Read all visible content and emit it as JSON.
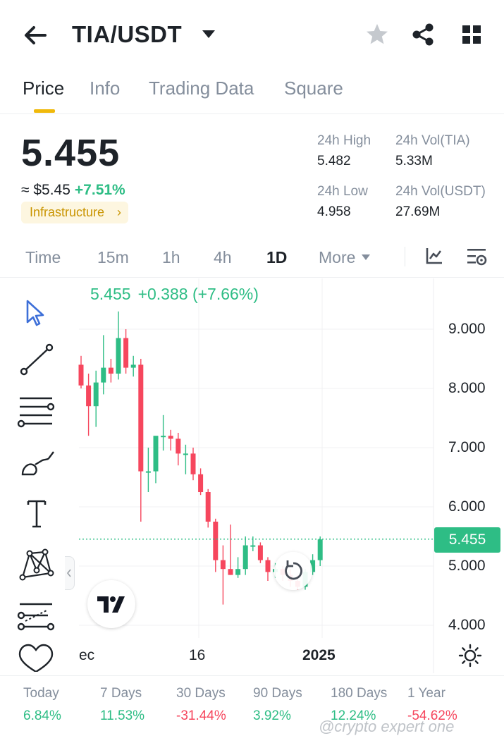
{
  "header": {
    "pair": "TIA/USDT",
    "icons": [
      "back-arrow-icon",
      "caret-down-icon",
      "star-icon",
      "share-icon",
      "grid-icon"
    ]
  },
  "tabs": [
    {
      "label": "Price",
      "active": true
    },
    {
      "label": "Info"
    },
    {
      "label": "Trading Data"
    },
    {
      "label": "Square"
    }
  ],
  "ticker": {
    "last_price": "5.455",
    "usd_value": "≈ $5.45",
    "change_pct": "+7.51%",
    "category_tag": "Infrastructure",
    "category_arrow": "›",
    "high_label": "24h High",
    "high_value": "5.482",
    "low_label": "24h Low",
    "low_value": "4.958",
    "vol_base_label": "24h Vol(TIA)",
    "vol_base_value": "5.33M",
    "vol_quote_label": "24h Vol(USDT)",
    "vol_quote_value": "27.69M"
  },
  "intervals": {
    "items": [
      "Time",
      "15m",
      "1h",
      "4h",
      "1D",
      "More"
    ],
    "active": "1D"
  },
  "chart": {
    "legend_price": "5.455",
    "legend_change": "+0.388 (+7.66%)",
    "y_ticks": [
      "9.000",
      "8.000",
      "7.000",
      "6.000",
      "5.000",
      "4.000"
    ],
    "last_price_tag": "5.455",
    "x_ticks": [
      "ec",
      "16",
      "2025"
    ],
    "up_color": "#2ebd85",
    "down_color": "#f6465d"
  },
  "chart_data": {
    "type": "candlestick",
    "ylim": [
      3.8,
      9.4
    ],
    "y_ticks": [
      9,
      8,
      7,
      6,
      5,
      4
    ],
    "last_price": 5.455,
    "candles": [
      {
        "o": 8.4,
        "h": 8.55,
        "l": 8.0,
        "c": 8.05
      },
      {
        "o": 8.05,
        "h": 8.25,
        "l": 7.2,
        "c": 7.7
      },
      {
        "o": 7.7,
        "h": 8.3,
        "l": 7.35,
        "c": 8.1
      },
      {
        "o": 8.1,
        "h": 8.9,
        "l": 7.9,
        "c": 8.35
      },
      {
        "o": 8.35,
        "h": 8.5,
        "l": 8.1,
        "c": 8.25
      },
      {
        "o": 8.25,
        "h": 9.3,
        "l": 8.15,
        "c": 8.85
      },
      {
        "o": 8.85,
        "h": 9.0,
        "l": 8.25,
        "c": 8.35
      },
      {
        "o": 8.35,
        "h": 8.55,
        "l": 8.2,
        "c": 8.4
      },
      {
        "o": 8.4,
        "h": 8.5,
        "l": 5.75,
        "c": 6.6
      },
      {
        "o": 6.6,
        "h": 7.0,
        "l": 6.25,
        "c": 6.6
      },
      {
        "o": 6.6,
        "h": 7.15,
        "l": 6.4,
        "c": 7.2
      },
      {
        "o": 7.2,
        "h": 7.55,
        "l": 6.95,
        "c": 7.2
      },
      {
        "o": 7.2,
        "h": 7.3,
        "l": 6.95,
        "c": 7.15
      },
      {
        "o": 7.15,
        "h": 7.25,
        "l": 6.7,
        "c": 6.9
      },
      {
        "o": 6.9,
        "h": 7.05,
        "l": 6.55,
        "c": 6.9
      },
      {
        "o": 6.9,
        "h": 7.0,
        "l": 6.45,
        "c": 6.55
      },
      {
        "o": 6.55,
        "h": 6.65,
        "l": 6.2,
        "c": 6.25
      },
      {
        "o": 6.25,
        "h": 6.3,
        "l": 5.65,
        "c": 5.75
      },
      {
        "o": 5.75,
        "h": 5.8,
        "l": 4.9,
        "c": 5.1
      },
      {
        "o": 5.1,
        "h": 5.35,
        "l": 4.35,
        "c": 4.95
      },
      {
        "o": 4.95,
        "h": 5.7,
        "l": 4.85,
        "c": 4.85
      },
      {
        "o": 4.85,
        "h": 5.15,
        "l": 4.8,
        "c": 4.95
      },
      {
        "o": 4.95,
        "h": 5.5,
        "l": 4.85,
        "c": 5.35
      },
      {
        "o": 5.35,
        "h": 5.5,
        "l": 5.25,
        "c": 5.35
      },
      {
        "o": 5.35,
        "h": 5.4,
        "l": 5.05,
        "c": 5.1
      },
      {
        "o": 5.1,
        "h": 5.15,
        "l": 4.75,
        "c": 4.9
      },
      {
        "o": 4.9,
        "h": 5.05,
        "l": 4.8,
        "c": 4.95
      },
      {
        "o": 4.95,
        "h": 5.0,
        "l": 4.75,
        "c": 4.85
      },
      {
        "o": 4.85,
        "h": 4.95,
        "l": 4.65,
        "c": 4.75
      },
      {
        "o": 4.75,
        "h": 4.85,
        "l": 4.6,
        "c": 4.65
      },
      {
        "o": 4.65,
        "h": 4.95,
        "l": 4.6,
        "c": 4.9
      },
      {
        "o": 4.9,
        "h": 5.2,
        "l": 4.85,
        "c": 5.1
      },
      {
        "o": 5.1,
        "h": 5.5,
        "l": 5.0,
        "c": 5.45
      }
    ]
  },
  "tools": [
    {
      "name": "cursor-tool-icon"
    },
    {
      "name": "trend-line-tool-icon"
    },
    {
      "name": "horizontal-lines-tool-icon"
    },
    {
      "name": "brush-tool-icon"
    },
    {
      "name": "text-tool-icon"
    },
    {
      "name": "pattern-tool-icon"
    },
    {
      "name": "fib-tool-icon"
    },
    {
      "name": "favorite-tool-icon"
    }
  ],
  "performance": [
    {
      "label": "Today",
      "value": "6.84%",
      "dir": "pos"
    },
    {
      "label": "7 Days",
      "value": "11.53%",
      "dir": "pos"
    },
    {
      "label": "30 Days",
      "value": "-31.44%",
      "dir": "neg"
    },
    {
      "label": "90 Days",
      "value": "3.92%",
      "dir": "pos"
    },
    {
      "label": "180 Days",
      "value": "12.24%",
      "dir": "pos"
    },
    {
      "label": "1 Year",
      "value": "-54.62%",
      "dir": "neg"
    }
  ],
  "watermark": "@crypto expert one"
}
